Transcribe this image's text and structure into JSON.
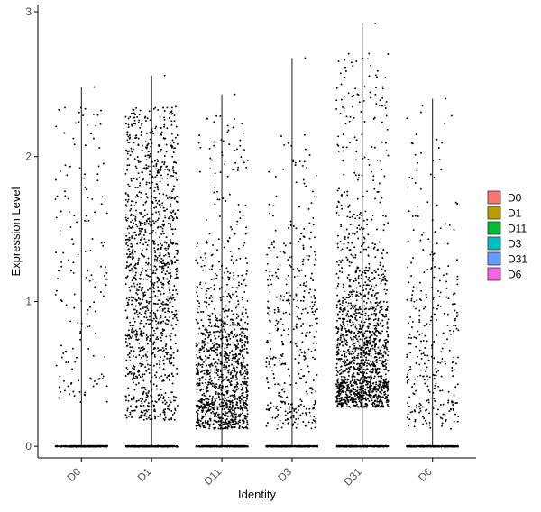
{
  "chart_data": {
    "type": "scatter",
    "subtype": "violin-jitter",
    "title": "",
    "xlabel": "Identity",
    "ylabel": "Expression Level",
    "categories": [
      "D0",
      "D1",
      "D11",
      "D3",
      "D31",
      "D6"
    ],
    "ylim": [
      -0.08,
      3.05
    ],
    "yticks": [
      0,
      1,
      2,
      3
    ],
    "grid": false,
    "legend": {
      "position": "right",
      "entries": [
        {
          "label": "D0",
          "color": "#F8766D"
        },
        {
          "label": "D1",
          "color": "#B79F00"
        },
        {
          "label": "D11",
          "color": "#00BA38"
        },
        {
          "label": "D3",
          "color": "#00BFC4"
        },
        {
          "label": "D31",
          "color": "#619CFF"
        },
        {
          "label": "D6",
          "color": "#F564E3"
        }
      ]
    },
    "series": [
      {
        "name": "D0",
        "max": 2.48,
        "nonzero_count": 160,
        "center": 1.1,
        "spread": 0.7,
        "low": 0.3,
        "high": 2.42
      },
      {
        "name": "D1",
        "max": 2.56,
        "nonzero_count": 1300,
        "center": 1.2,
        "spread": 0.65,
        "low": 0.18,
        "high": 2.35
      },
      {
        "name": "D11",
        "max": 2.43,
        "nonzero_count": 1200,
        "center": 0.45,
        "spread": 0.35,
        "low": 0.12,
        "high": 2.3
      },
      {
        "name": "D3",
        "max": 2.68,
        "nonzero_count": 420,
        "center": 0.7,
        "spread": 0.5,
        "low": 0.12,
        "high": 2.15
      },
      {
        "name": "D31",
        "max": 2.92,
        "nonzero_count": 1500,
        "center": 0.6,
        "spread": 0.4,
        "low": 0.27,
        "high": 2.75
      },
      {
        "name": "D6",
        "max": 2.4,
        "nonzero_count": 330,
        "center": 0.65,
        "spread": 0.45,
        "low": 0.12,
        "high": 2.38
      }
    ],
    "zero_points_per_group": 300
  }
}
